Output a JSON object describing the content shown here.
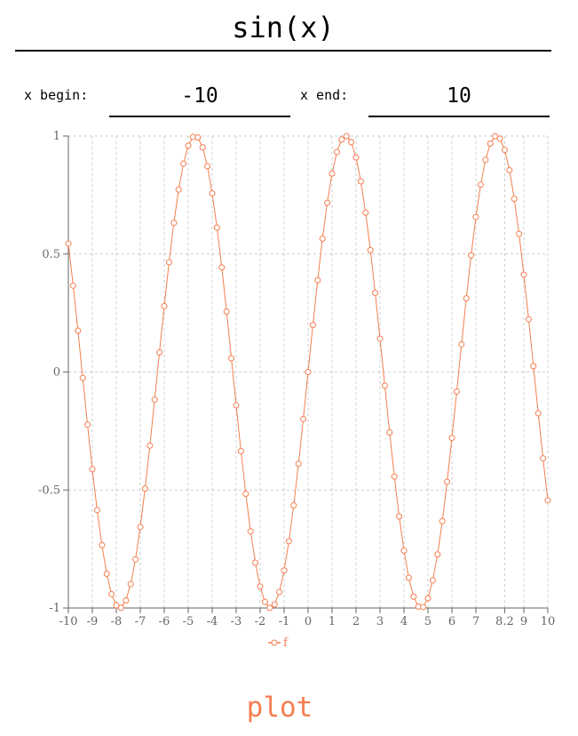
{
  "function_input": {
    "value": "sin(x)"
  },
  "range": {
    "begin_label": "x begin:",
    "begin_value": "-10",
    "end_label": "x end:",
    "end_value": "10"
  },
  "plot_button": {
    "label": "plot"
  },
  "colors": {
    "series": "#f47e4f",
    "grid": "#cccccc",
    "axis": "#666666"
  },
  "chart_data": {
    "type": "line",
    "xlim": [
      -10,
      10
    ],
    "ylim": [
      -1,
      1
    ],
    "x_ticks": [
      -10,
      -9,
      -8,
      -7,
      -6,
      -5,
      -4,
      -3,
      -2,
      -1,
      0,
      1,
      2,
      3,
      4,
      5,
      6,
      7,
      8.2,
      9,
      10
    ],
    "x_tick_labels": [
      "-10",
      "-9",
      "-8",
      "-7",
      "-6",
      "-5",
      "-4",
      "-3",
      "-2",
      "-1",
      "0",
      "1",
      "2",
      "3",
      "4",
      "5",
      "6",
      "7",
      "8.2",
      "9",
      "10"
    ],
    "y_ticks": [
      -1,
      -0.5,
      0,
      0.5,
      1
    ],
    "y_tick_labels": [
      "-1",
      "-0.5",
      "0",
      "0.5",
      "1"
    ],
    "grid": true,
    "legend_placement": "bottom-center",
    "series": [
      {
        "name": "f",
        "x": [
          -10.0,
          -9.8,
          -9.6,
          -9.4,
          -9.2,
          -9.0,
          -8.8,
          -8.6,
          -8.4,
          -8.2,
          -8.0,
          -7.8,
          -7.6,
          -7.4,
          -7.2,
          -7.0,
          -6.8,
          -6.6,
          -6.4,
          -6.2,
          -6.0,
          -5.8,
          -5.6,
          -5.4,
          -5.2,
          -5.0,
          -4.8,
          -4.6,
          -4.4,
          -4.2,
          -4.0,
          -3.8,
          -3.6,
          -3.4,
          -3.2,
          -3.0,
          -2.8,
          -2.6,
          -2.4,
          -2.2,
          -2.0,
          -1.8,
          -1.6,
          -1.4,
          -1.2,
          -1.0,
          -0.8,
          -0.6,
          -0.4,
          -0.2,
          0.0,
          0.2,
          0.4,
          0.6,
          0.8,
          1.0,
          1.2,
          1.4,
          1.6,
          1.8,
          2.0,
          2.2,
          2.4,
          2.6,
          2.8,
          3.0,
          3.2,
          3.4,
          3.6,
          3.8,
          4.0,
          4.2,
          4.4,
          4.6,
          4.8,
          5.0,
          5.2,
          5.4,
          5.6,
          5.8,
          6.0,
          6.2,
          6.4,
          6.6,
          6.8,
          7.0,
          7.2,
          7.4,
          7.6,
          7.8,
          8.0,
          8.2,
          8.4,
          8.6,
          8.8,
          9.0,
          9.2,
          9.4,
          9.6,
          9.8,
          10.0
        ],
        "y": [
          0.544,
          0.366,
          0.175,
          -0.025,
          -0.223,
          -0.412,
          -0.585,
          -0.734,
          -0.855,
          -0.941,
          -0.989,
          -0.999,
          -0.968,
          -0.899,
          -0.794,
          -0.657,
          -0.494,
          -0.312,
          -0.117,
          0.083,
          0.279,
          0.465,
          0.632,
          0.773,
          0.883,
          0.959,
          0.996,
          0.994,
          0.952,
          0.872,
          0.757,
          0.612,
          0.443,
          0.256,
          0.058,
          -0.141,
          -0.335,
          -0.516,
          -0.675,
          -0.808,
          -0.909,
          -0.974,
          -0.9996,
          -0.985,
          -0.932,
          -0.841,
          -0.717,
          -0.565,
          -0.389,
          -0.199,
          0.0,
          0.199,
          0.389,
          0.565,
          0.717,
          0.841,
          0.932,
          0.985,
          0.9996,
          0.974,
          0.909,
          0.808,
          0.675,
          0.516,
          0.335,
          0.141,
          -0.058,
          -0.256,
          -0.443,
          -0.612,
          -0.757,
          -0.872,
          -0.952,
          -0.994,
          -0.996,
          -0.959,
          -0.883,
          -0.773,
          -0.632,
          -0.465,
          -0.279,
          -0.083,
          0.117,
          0.312,
          0.494,
          0.657,
          0.794,
          0.899,
          0.968,
          0.999,
          0.989,
          0.941,
          0.855,
          0.734,
          0.585,
          0.412,
          0.223,
          0.025,
          -0.175,
          -0.366,
          -0.544
        ]
      }
    ]
  }
}
